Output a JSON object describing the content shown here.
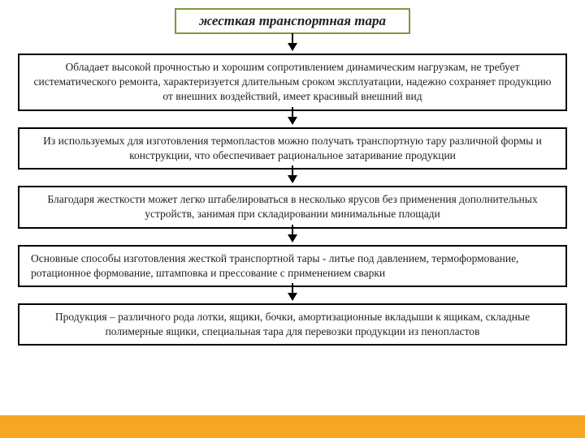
{
  "diagram": {
    "type": "flowchart-vertical",
    "title": "жесткая транспортная тара",
    "title_border_color": "#7a9a3a",
    "box_border_color": "#000000",
    "arrow_color": "#000000",
    "background_color": "#ffffff",
    "accent_band_color": "#f5a623",
    "title_fontsize": 17,
    "body_fontsize": 13.5,
    "boxes": [
      {
        "text": "Обладает высокой прочностью и хорошим сопротивлением динамическим нагрузкам, не требует систематического ремонта, характеризуется длительным сроком эксплуатации, надежно сохраняет продукцию от внешних воздействий, имеет красивый внешний вид",
        "align": "center"
      },
      {
        "text": "Из используемых для изготовления термопластов можно получать транспортную тару различной формы и конструкции, что обеспечивает рациональное затаривание продукции",
        "align": "center"
      },
      {
        "text": "Благодаря жесткости может легко штабелироваться в несколько ярусов без применения дополнительных устройств, занимая при складировании минимальные площади",
        "align": "center"
      },
      {
        "text": "Основные способы изготовления жесткой транспортной тары - литье под давлением, термоформование, ротационное формование, штамповка и прессование с применением сварки",
        "align": "left"
      },
      {
        "text": "Продукция – различного рода лотки, ящики, бочки, амортизационные вкладыши к ящикам, складные полимерные ящики, специальная тара для перевозки продукции из пенопластов",
        "align": "center"
      }
    ]
  }
}
